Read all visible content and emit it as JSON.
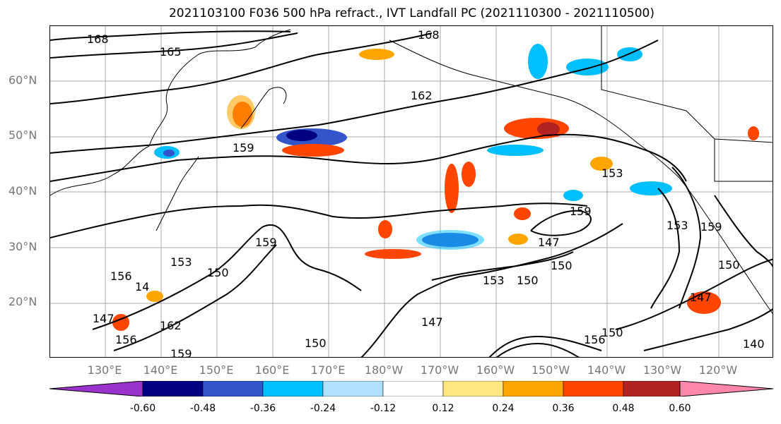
{
  "title": "2021103100 F036 500 hPa refract., IVT Landfall PC (2021110300 - 2021110500)",
  "lat_labels": [
    "60°N",
    "50°N",
    "40°N",
    "30°N",
    "20°N"
  ],
  "lon_labels": [
    "130°E",
    "140°E",
    "150°E",
    "160°E",
    "170°E",
    "180°W",
    "170°W",
    "160°W",
    "150°W",
    "140°W",
    "130°W",
    "120°W"
  ],
  "contour_labels": [
    "168",
    "165",
    "162",
    "159",
    "168",
    "159",
    "156",
    "153",
    "153",
    "150",
    "153",
    "150",
    "147",
    "147",
    "150",
    "150",
    "159",
    "153",
    "159",
    "150",
    "147",
    "150",
    "156",
    "159",
    "162",
    "140",
    "156",
    "147",
    "14"
  ],
  "colorbar": {
    "tick_labels": [
      "-0.60",
      "-0.48",
      "-0.36",
      "-0.24",
      "-0.12",
      "0.12",
      "0.24",
      "0.36",
      "0.48",
      "0.60"
    ],
    "colors": [
      "#9933cc",
      "#000080",
      "#3355cc",
      "#00bfff",
      "#b0e0ff",
      "#ffffff",
      "#ffe680",
      "#ffa500",
      "#ff4500",
      "#b22222",
      "#ff88aa"
    ]
  },
  "colors": {
    "contour": "#000000",
    "grid": "#aaaaaa",
    "coast": "#000000",
    "axis_text": "#777777"
  }
}
